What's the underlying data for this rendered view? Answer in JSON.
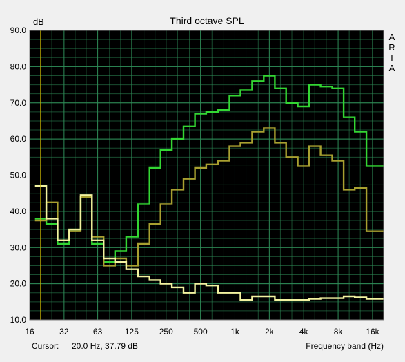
{
  "chart_data": {
    "type": "line",
    "title": "Third octave SPL",
    "ylabel": "dB",
    "xlabel": "Frequency band (Hz)",
    "brand": "ARTA",
    "ylim": [
      10,
      90
    ],
    "y_ticks": [
      "10.0",
      "20.0",
      "30.0",
      "40.0",
      "50.0",
      "60.0",
      "70.0",
      "80.0",
      "90.0"
    ],
    "x_ticks": [
      "16",
      "32",
      "63",
      "125",
      "250",
      "500",
      "1k",
      "2k",
      "4k",
      "8k",
      "16k"
    ],
    "x_tick_values": [
      16,
      32,
      63,
      125,
      250,
      500,
      1000,
      2000,
      4000,
      8000,
      16000
    ],
    "bands": [
      20,
      25,
      31.5,
      40,
      50,
      63,
      80,
      100,
      125,
      160,
      200,
      250,
      315,
      400,
      500,
      630,
      800,
      1000,
      1250,
      1600,
      2000,
      2500,
      3150,
      4000,
      5000,
      6300,
      8000,
      10000,
      12500,
      16000,
      20000
    ],
    "grid": true,
    "cursor": {
      "label": "Cursor:",
      "readout": "20.0 Hz, 37.79 dB",
      "x": 20
    },
    "colors": {
      "background": "#000000",
      "grid": "#2e8b57",
      "cursor": "#c8b400",
      "green": "#33d633",
      "olive": "#a8a030",
      "yellow": "#f2f2a0"
    },
    "series": [
      {
        "color": "#33d633",
        "values": [
          38,
          36.5,
          31,
          35,
          44,
          31,
          26,
          29,
          33,
          42,
          52,
          57,
          60,
          63.5,
          67,
          67.5,
          68,
          72,
          73.5,
          76,
          77.5,
          74,
          70,
          69,
          75,
          74.5,
          74,
          66,
          62,
          52.5,
          52.5
        ]
      },
      {
        "color": "#a8a030",
        "values": [
          37.5,
          42.5,
          32,
          34.5,
          44,
          33,
          25,
          27,
          25,
          31,
          36.5,
          42,
          46,
          49,
          52,
          53,
          54,
          58,
          59,
          62,
          63,
          59,
          55,
          52.5,
          58,
          55.5,
          54,
          46,
          46.5,
          34.5,
          34.5
        ]
      },
      {
        "color": "#f2f2a0",
        "values": [
          47,
          38,
          32,
          35,
          44.5,
          32,
          27,
          26,
          24,
          22,
          21,
          20,
          19,
          17.5,
          20,
          19.5,
          17.5,
          17.5,
          15.5,
          16.5,
          16.5,
          15.5,
          15.5,
          15.5,
          15.8,
          16,
          16,
          16.5,
          16.2,
          15.8,
          15.8
        ]
      }
    ]
  }
}
